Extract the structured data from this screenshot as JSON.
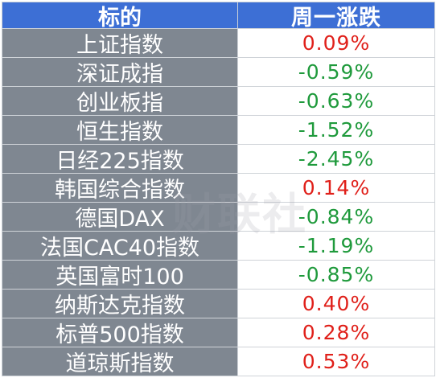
{
  "header": {
    "name_label": "标的",
    "change_label": "周一涨跌"
  },
  "rows": [
    {
      "name": "上证指数",
      "change": "0.09%",
      "dir": "up"
    },
    {
      "name": "深证成指",
      "change": "-0.59%",
      "dir": "down"
    },
    {
      "name": "创业板指",
      "change": "-0.63%",
      "dir": "down"
    },
    {
      "name": "恒生指数",
      "change": "-1.52%",
      "dir": "down"
    },
    {
      "name": "日经225指数",
      "change": "-2.45%",
      "dir": "down"
    },
    {
      "name": "韩国综合指数",
      "change": "0.14%",
      "dir": "up"
    },
    {
      "name": "德国DAX",
      "change": "-0.84%",
      "dir": "down"
    },
    {
      "name": "法国CAC40指数",
      "change": "-1.19%",
      "dir": "down"
    },
    {
      "name": "英国富时100",
      "change": "-0.85%",
      "dir": "down"
    },
    {
      "name": "纳斯达克指数",
      "change": "0.40%",
      "dir": "up"
    },
    {
      "name": "标普500指数",
      "change": "0.28%",
      "dir": "up"
    },
    {
      "name": "道琼斯指数",
      "change": "0.53%",
      "dir": "up"
    }
  ],
  "colors": {
    "header_bg": "#3d6fd5",
    "name_bg": "#7f8791",
    "up": "#e0201a",
    "down": "#1f9a3c"
  },
  "watermark": "财联社"
}
